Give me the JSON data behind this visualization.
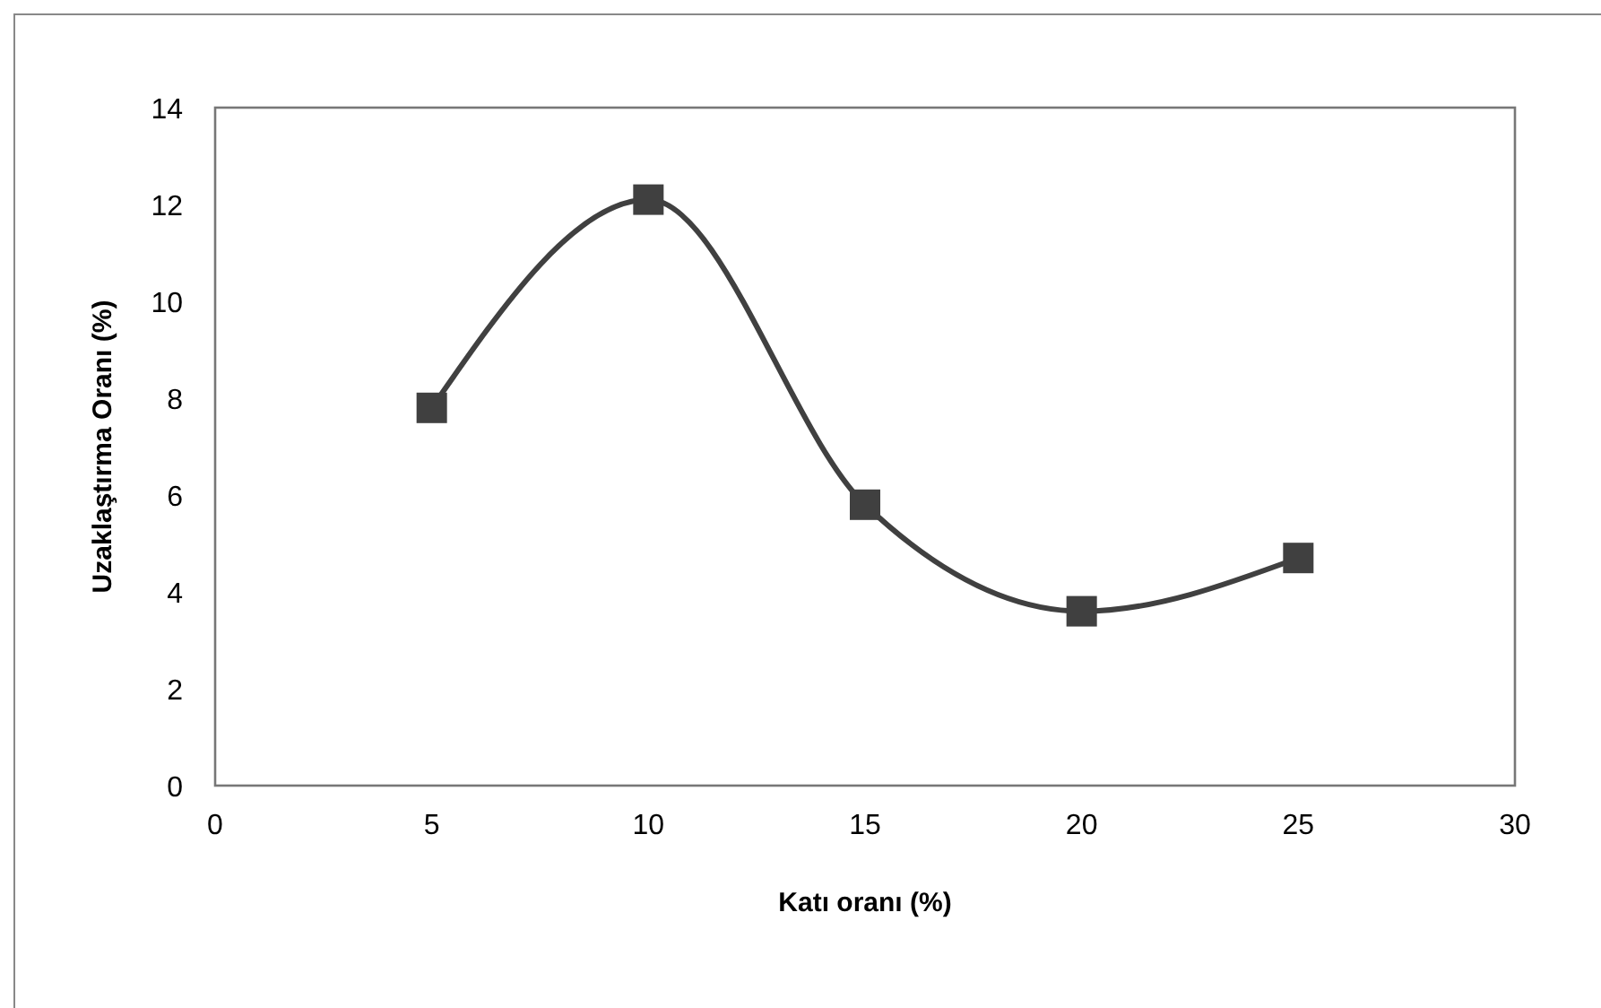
{
  "chart_data": {
    "type": "line",
    "xlabel": "Katı oranı (%)",
    "ylabel": "Uzaklaştırma Oranı (%)",
    "x": [
      5,
      10,
      15,
      20,
      25
    ],
    "series": [
      {
        "color": "#404040",
        "values": [
          7.8,
          12.1,
          5.8,
          3.6,
          4.7
        ]
      }
    ],
    "xlim": [
      0,
      30
    ],
    "xticks": [
      0,
      5,
      10,
      15,
      20,
      25,
      30
    ],
    "ylim": [
      0,
      14
    ],
    "yticks": [
      0,
      2,
      4,
      6,
      8,
      10,
      12,
      14
    ],
    "marker": "square",
    "line_style": "solid"
  }
}
